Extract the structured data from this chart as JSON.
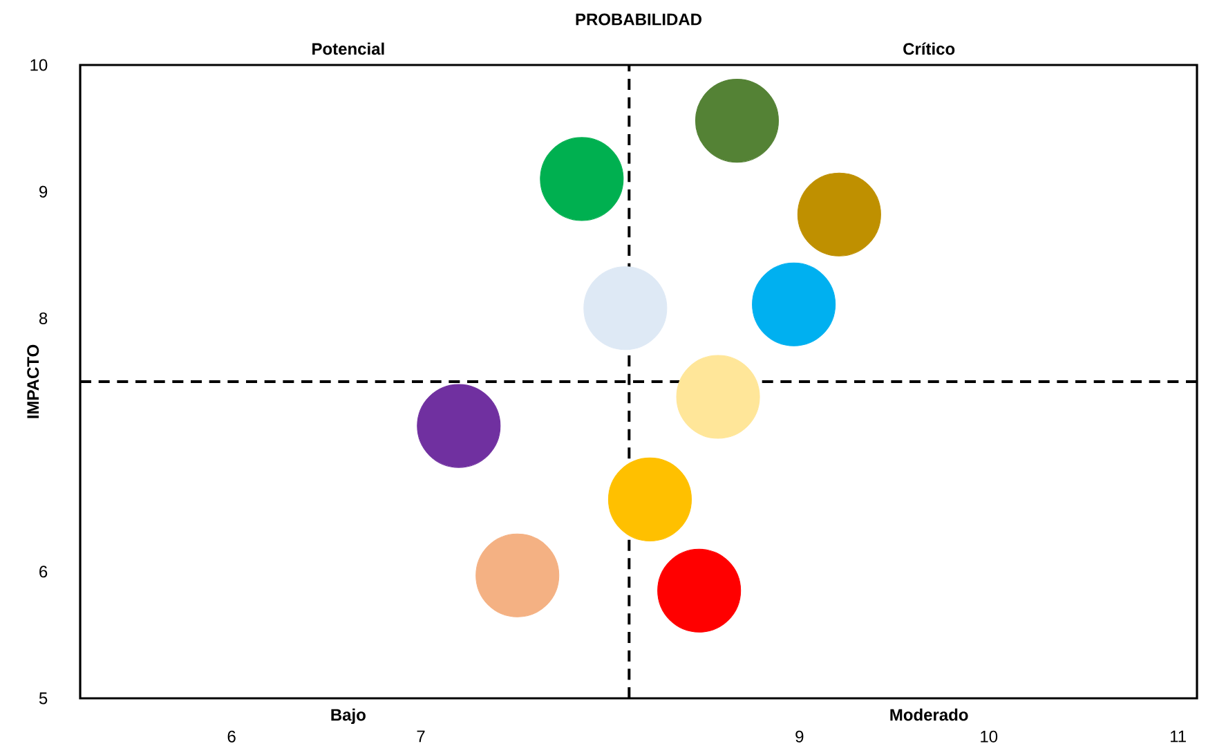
{
  "chart_data": {
    "type": "bubble",
    "title": "PROBABILIDAD",
    "ylabel": "IMPACTO",
    "x": [
      7.2,
      7.51,
      8.08,
      7.85,
      8.21,
      8.47,
      8.57,
      8.67,
      8.97,
      9.21
    ],
    "values": [
      7.15,
      5.97,
      8.08,
      9.1,
      6.57,
      5.85,
      7.38,
      9.56,
      8.11,
      8.82
    ],
    "sizes": [
      1,
      1,
      1,
      1,
      1,
      1,
      1,
      1,
      1,
      1
    ],
    "colors": [
      "#7030a0",
      "#f4b183",
      "#dee9f5",
      "#00b050",
      "#ffc000",
      "#ff0000",
      "#ffe699",
      "#548235",
      "#00b0f0",
      "#bf9000"
    ],
    "xlim": [
      5.2,
      11.1
    ],
    "xticks": [
      6,
      7,
      9,
      10,
      11
    ],
    "ylim": [
      5,
      10
    ],
    "yticks": [
      5,
      6,
      8,
      9,
      10
    ],
    "ref_lines": [
      {
        "axis": "x",
        "value": 8.1,
        "color": "#000000",
        "line_style": "dashed"
      },
      {
        "axis": "y",
        "value": 7.5,
        "color": "#000000",
        "line_style": "dashed"
      }
    ],
    "annotations": [
      "Potencial",
      "Crítico",
      "Bajo",
      "Moderado"
    ],
    "grid": false
  }
}
